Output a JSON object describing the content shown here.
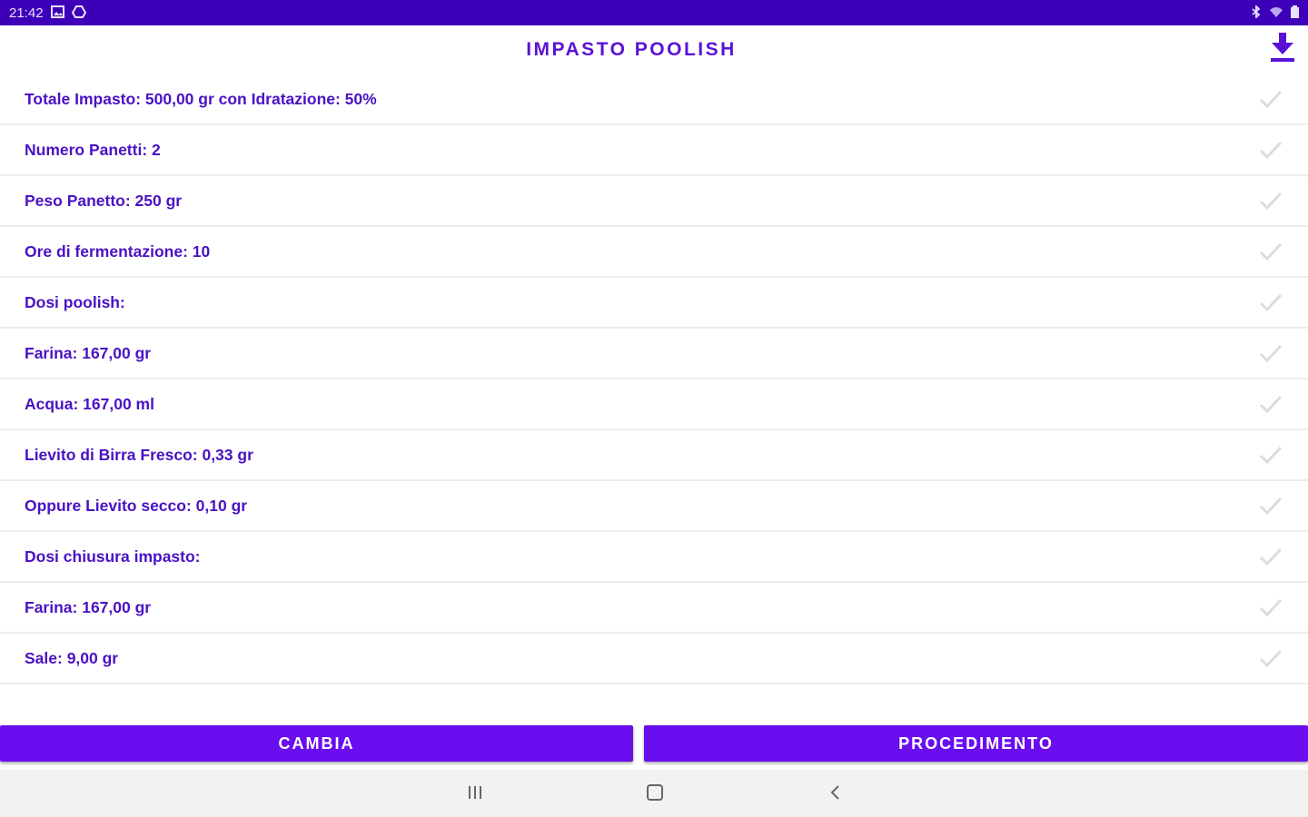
{
  "status_bar": {
    "time": "21:42",
    "left_icons": [
      "gallery-icon",
      "drive-icon"
    ],
    "right_icons": [
      "bluetooth-icon",
      "wifi-icon",
      "battery-icon"
    ]
  },
  "header": {
    "title": "IMPASTO POOLISH",
    "download_icon": "download-icon"
  },
  "rows": [
    {
      "label": "Totale Impasto: 500,00 gr con Idratazione: 50%"
    },
    {
      "label": "Numero Panetti: 2"
    },
    {
      "label": "Peso Panetto: 250 gr"
    },
    {
      "label": "Ore di fermentazione: 10"
    },
    {
      "label": "Dosi poolish:"
    },
    {
      "label": "Farina: 167,00 gr"
    },
    {
      "label": "Acqua: 167,00 ml"
    },
    {
      "label": "Lievito di Birra Fresco: 0,33 gr"
    },
    {
      "label": "Oppure Lievito secco: 0,10 gr"
    },
    {
      "label": "Dosi chiusura impasto:"
    },
    {
      "label": "Farina: 167,00 gr"
    },
    {
      "label": "Sale: 9,00 gr"
    }
  ],
  "buttons": {
    "cambia": "CAMBIA",
    "procedimento": "PROCEDIMENTO"
  },
  "colors": {
    "status_bar": "#3d00b8",
    "accent": "#6a0ef0",
    "text": "#4a12c4",
    "check": "#dcdcdc"
  }
}
